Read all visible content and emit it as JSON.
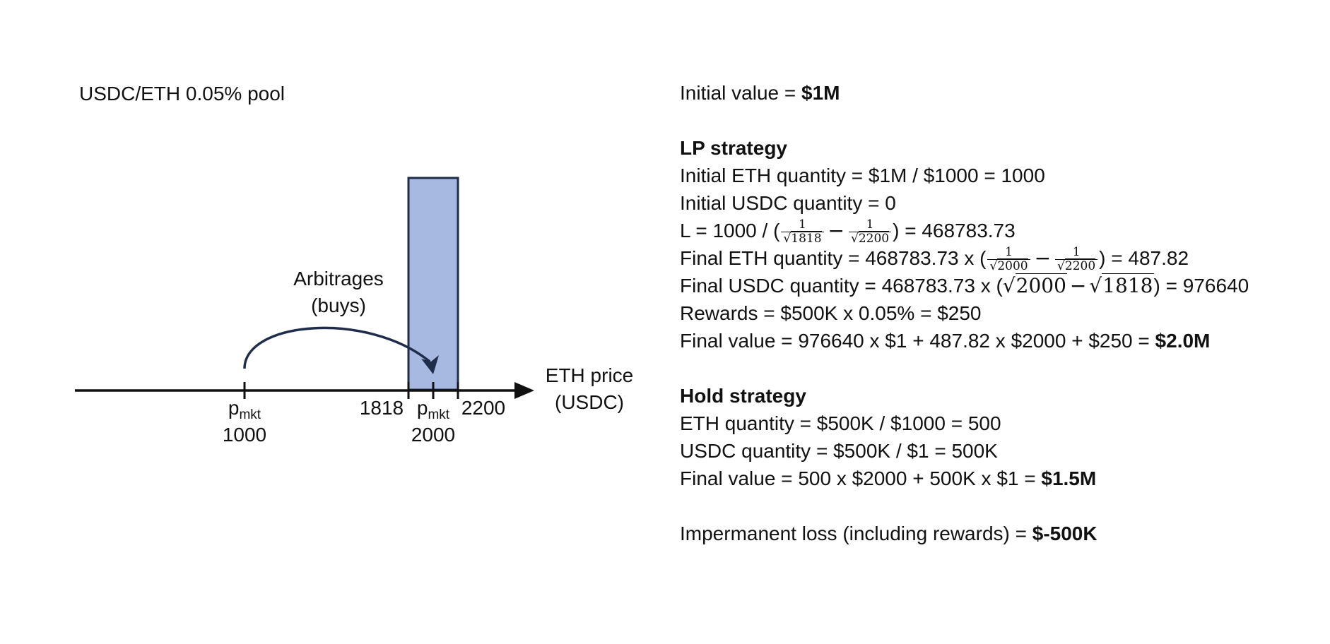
{
  "diagram": {
    "pool_title": "USDC/ETH 0.05% pool",
    "arbitrage_line1": "Arbitrages",
    "arbitrage_line2": "(buys)",
    "axis_label_line1": "ETH price",
    "axis_label_line2": "(USDC)",
    "range_lower": "1818",
    "range_upper": "2200",
    "pmkt_start": {
      "p": "p",
      "sub": "mkt",
      "value": "1000"
    },
    "pmkt_end": {
      "p": "p",
      "sub": "mkt",
      "value": "2000"
    },
    "colors": {
      "range_fill": "#a7b9e1",
      "range_stroke": "#1f2d4a",
      "arrow": "#1f2d4a",
      "axis": "#111111"
    }
  },
  "panel": {
    "initial_value": {
      "label": "Initial value = ",
      "value": "$1M"
    },
    "lp": {
      "heading": "LP strategy",
      "eth_qty": "Initial ETH quantity = $1M / $1000 = 1000",
      "usdc_qty": "Initial USDC quantity = 0",
      "L": {
        "prefix": "L = 1000 / (",
        "num1": "1",
        "den1": "1818",
        "num2": "1",
        "den2": "2200",
        "suffix": ") = 468783.73"
      },
      "final_eth": {
        "prefix": "Final ETH quantity = 468783.73 x (",
        "num1": "1",
        "den1": "2000",
        "num2": "1",
        "den2": "2200",
        "suffix": ") = 487.82"
      },
      "final_usdc": {
        "prefix": "Final USDC quantity = 468783.73 x (",
        "arg1": "2000",
        "arg2": "1818",
        "suffix": ") = 976640"
      },
      "rewards": "Rewards = $500K x 0.05% = $250",
      "final_value": {
        "label": "Final value = 976640 x $1 + 487.82 x $2000 + $250 = ",
        "value": "$2.0M"
      }
    },
    "hold": {
      "heading": "Hold strategy",
      "eth_qty": "ETH quantity = $500K / $1000 = 500",
      "usdc_qty": "USDC quantity = $500K / $1 = 500K",
      "final_value": {
        "label": "Final value = 500 x $2000 + 500K x $1 = ",
        "value": "$1.5M"
      }
    },
    "il": {
      "label": "Impermanent loss (including rewards) = ",
      "value": "$-500K"
    }
  }
}
